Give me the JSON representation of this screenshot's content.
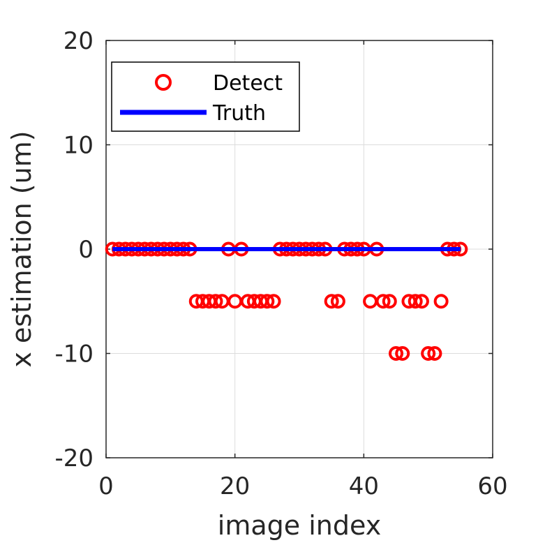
{
  "chart_data": {
    "type": "scatter",
    "title": "",
    "xlabel": "image index",
    "ylabel": "x estimation (um)",
    "xlim": [
      0,
      60
    ],
    "ylim": [
      -20,
      20
    ],
    "xticks": [
      0,
      20,
      40,
      60
    ],
    "yticks": [
      -20,
      -10,
      0,
      10,
      20
    ],
    "xtick_labels": [
      "0",
      "20",
      "40",
      "60"
    ],
    "ytick_labels": [
      "-20",
      "-10",
      "0",
      "10",
      "20"
    ],
    "grid": true,
    "legend_position": "top-left",
    "series": [
      {
        "name": "Detect",
        "type": "scatter",
        "marker": "circle",
        "color": "#ff0000",
        "x": [
          1,
          2,
          3,
          4,
          5,
          6,
          7,
          8,
          9,
          10,
          11,
          12,
          13,
          14,
          15,
          16,
          17,
          18,
          19,
          20,
          21,
          22,
          23,
          24,
          25,
          26,
          27,
          28,
          29,
          30,
          31,
          32,
          33,
          34,
          35,
          36,
          37,
          38,
          39,
          40,
          41,
          42,
          43,
          44,
          45,
          46,
          47,
          48,
          49,
          50,
          51,
          52,
          53,
          54,
          55
        ],
        "y": [
          0,
          0,
          0,
          0,
          0,
          0,
          0,
          0,
          0,
          0,
          0,
          0,
          0,
          -5,
          -5,
          -5,
          -5,
          -5,
          0,
          -5,
          0,
          -5,
          -5,
          -5,
          -5,
          -5,
          0,
          0,
          0,
          0,
          0,
          0,
          0,
          0,
          -5,
          -5,
          0,
          0,
          0,
          0,
          -5,
          0,
          -5,
          -5,
          -10,
          -10,
          -5,
          -5,
          -5,
          -10,
          -10,
          -5,
          0,
          0,
          0
        ]
      },
      {
        "name": "Truth",
        "type": "line",
        "color": "#0000ff",
        "x": [
          1,
          55
        ],
        "y": [
          0,
          0
        ]
      }
    ]
  }
}
